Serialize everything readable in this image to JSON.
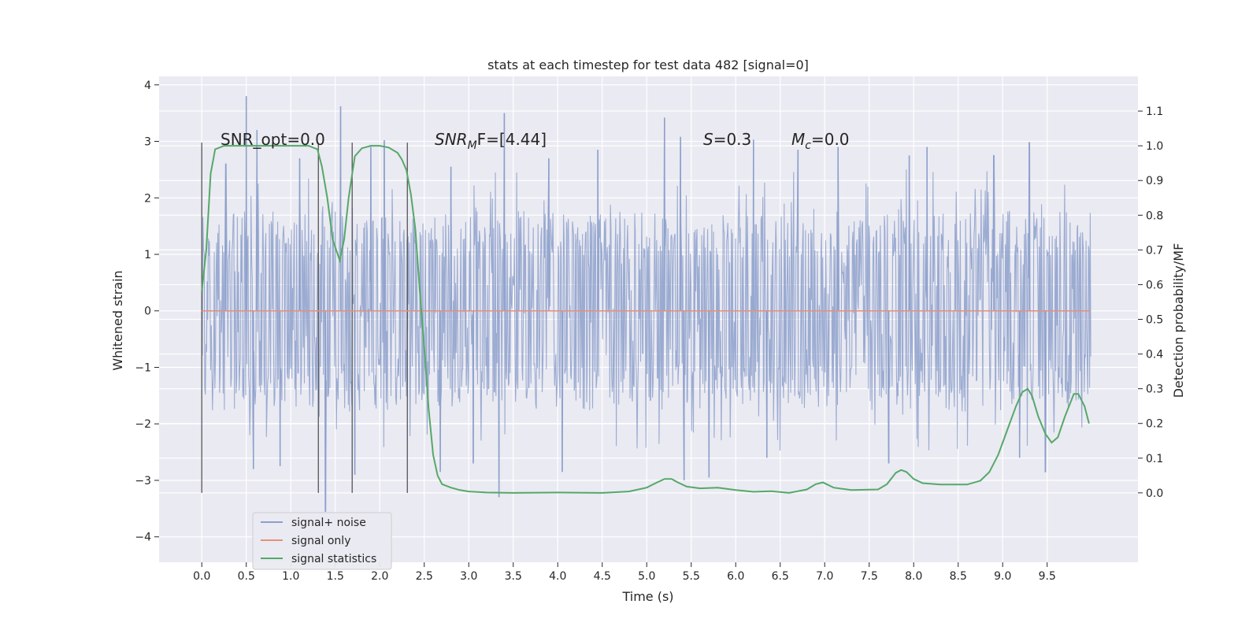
{
  "chart_data": {
    "type": "line",
    "title": "stats at each timestep for test data 482 [signal=0]",
    "xlabel": "Time (s)",
    "ylabel_left": "Whitened strain",
    "ylabel_right": "Detection probability/MF",
    "xlim": [
      -0.48,
      10.52
    ],
    "ylim_left": [
      -4.45,
      4.15
    ],
    "ylim_right": [
      -0.2,
      1.2
    ],
    "x_ticks": [
      "0.0",
      "0.5",
      "1.0",
      "1.5",
      "2.0",
      "2.5",
      "3.0",
      "3.5",
      "4.0",
      "4.5",
      "5.0",
      "5.5",
      "6.0",
      "6.5",
      "7.0",
      "7.5",
      "8.0",
      "8.5",
      "9.0",
      "9.5"
    ],
    "y_ticks_left": [
      "4",
      "3",
      "2",
      "1",
      "0",
      "−1",
      "−2",
      "−3",
      "−4"
    ],
    "y_ticks_right": [
      "1.1",
      "1.0",
      "0.9",
      "0.8",
      "0.7",
      "0.6",
      "0.5",
      "0.4",
      "0.3",
      "0.2",
      "0.1",
      "0.0"
    ],
    "grid": true,
    "legend_position": "lower-left",
    "annotations": {
      "snr_opt": "SNR_opt=0.0",
      "snr_mf_prefix": "SNR",
      "snr_mf_sub": "M",
      "snr_mf_suffix": "F=[4.44]",
      "s_italic": "S",
      "s_value": "=0.3",
      "mc_italic": "M",
      "mc_sub": "c",
      "mc_value": "=0.0"
    },
    "vertical_markers_x": [
      0.0,
      1.31,
      1.69,
      2.31
    ],
    "series": [
      {
        "name": "signal+ noise",
        "color": "#8da0cb",
        "kind": "noise",
        "x_range": [
          0.0,
          9.99
        ],
        "envelope": [
          -1.6,
          1.6
        ],
        "spikes_up": [
          [
            0.5,
            3.8
          ],
          [
            0.62,
            3.2
          ],
          [
            1.56,
            3.62
          ],
          [
            0.27,
            2.6
          ],
          [
            2.05,
            3.02
          ],
          [
            3.4,
            3.5
          ],
          [
            5.2,
            3.42
          ],
          [
            5.38,
            3.08
          ],
          [
            6.2,
            3.03
          ],
          [
            9.3,
            2.98
          ],
          [
            1.1,
            2.7
          ],
          [
            1.9,
            2.9
          ],
          [
            4.45,
            2.85
          ],
          [
            7.15,
            2.9
          ],
          [
            8.15,
            2.9
          ],
          [
            2.8,
            2.55
          ],
          [
            3.9,
            2.7
          ],
          [
            6.7,
            2.85
          ],
          [
            7.95,
            2.75
          ],
          [
            8.9,
            2.75
          ]
        ],
        "spikes_down": [
          [
            1.39,
            -3.55
          ],
          [
            3.34,
            -3.3
          ],
          [
            5.42,
            -3.0
          ],
          [
            5.7,
            -2.95
          ],
          [
            0.58,
            -2.8
          ],
          [
            0.88,
            -2.75
          ],
          [
            1.72,
            -2.9
          ],
          [
            2.68,
            -2.85
          ],
          [
            4.05,
            -2.85
          ],
          [
            7.72,
            -2.7
          ],
          [
            9.48,
            -2.85
          ],
          [
            9.19,
            -2.6
          ],
          [
            3.05,
            -2.7
          ],
          [
            6.35,
            -2.6
          ]
        ]
      },
      {
        "name": "signal only",
        "color": "#e5907a",
        "kind": "line",
        "axis": "left",
        "points": [
          [
            0.0,
            0.0
          ],
          [
            9.99,
            0.0
          ]
        ]
      },
      {
        "name": "signal statistics",
        "color": "#55a868",
        "kind": "line",
        "axis": "right",
        "points": [
          [
            0.0,
            0.58
          ],
          [
            0.05,
            0.7
          ],
          [
            0.1,
            0.92
          ],
          [
            0.15,
            0.99
          ],
          [
            0.25,
            1.0
          ],
          [
            0.5,
            1.0
          ],
          [
            1.0,
            1.0
          ],
          [
            1.2,
            1.0
          ],
          [
            1.3,
            0.99
          ],
          [
            1.35,
            0.94
          ],
          [
            1.41,
            0.85
          ],
          [
            1.47,
            0.73
          ],
          [
            1.55,
            0.67
          ],
          [
            1.6,
            0.73
          ],
          [
            1.65,
            0.85
          ],
          [
            1.72,
            0.97
          ],
          [
            1.8,
            0.993
          ],
          [
            1.9,
            1.0
          ],
          [
            2.0,
            1.0
          ],
          [
            2.1,
            0.995
          ],
          [
            2.2,
            0.98
          ],
          [
            2.25,
            0.96
          ],
          [
            2.3,
            0.93
          ],
          [
            2.35,
            0.86
          ],
          [
            2.4,
            0.76
          ],
          [
            2.45,
            0.58
          ],
          [
            2.5,
            0.42
          ],
          [
            2.55,
            0.24
          ],
          [
            2.6,
            0.11
          ],
          [
            2.65,
            0.05
          ],
          [
            2.7,
            0.025
          ],
          [
            2.8,
            0.015
          ],
          [
            2.9,
            0.008
          ],
          [
            3.0,
            0.004
          ],
          [
            3.2,
            0.001
          ],
          [
            3.5,
            0.0
          ],
          [
            4.0,
            0.001
          ],
          [
            4.5,
            0.0
          ],
          [
            4.8,
            0.004
          ],
          [
            5.0,
            0.015
          ],
          [
            5.1,
            0.028
          ],
          [
            5.2,
            0.04
          ],
          [
            5.28,
            0.04
          ],
          [
            5.35,
            0.03
          ],
          [
            5.45,
            0.018
          ],
          [
            5.6,
            0.013
          ],
          [
            5.8,
            0.015
          ],
          [
            6.0,
            0.008
          ],
          [
            6.2,
            0.003
          ],
          [
            6.4,
            0.005
          ],
          [
            6.6,
            0.0
          ],
          [
            6.8,
            0.01
          ],
          [
            6.9,
            0.025
          ],
          [
            6.98,
            0.03
          ],
          [
            7.1,
            0.015
          ],
          [
            7.3,
            0.008
          ],
          [
            7.6,
            0.01
          ],
          [
            7.7,
            0.025
          ],
          [
            7.8,
            0.058
          ],
          [
            7.86,
            0.066
          ],
          [
            7.92,
            0.06
          ],
          [
            8.0,
            0.04
          ],
          [
            8.1,
            0.028
          ],
          [
            8.3,
            0.024
          ],
          [
            8.6,
            0.024
          ],
          [
            8.75,
            0.035
          ],
          [
            8.85,
            0.06
          ],
          [
            8.95,
            0.11
          ],
          [
            9.05,
            0.18
          ],
          [
            9.15,
            0.25
          ],
          [
            9.22,
            0.29
          ],
          [
            9.28,
            0.3
          ],
          [
            9.33,
            0.28
          ],
          [
            9.4,
            0.22
          ],
          [
            9.48,
            0.17
          ],
          [
            9.55,
            0.145
          ],
          [
            9.62,
            0.16
          ],
          [
            9.7,
            0.22
          ],
          [
            9.8,
            0.285
          ],
          [
            9.85,
            0.285
          ],
          [
            9.92,
            0.25
          ],
          [
            9.97,
            0.2
          ]
        ]
      }
    ]
  }
}
